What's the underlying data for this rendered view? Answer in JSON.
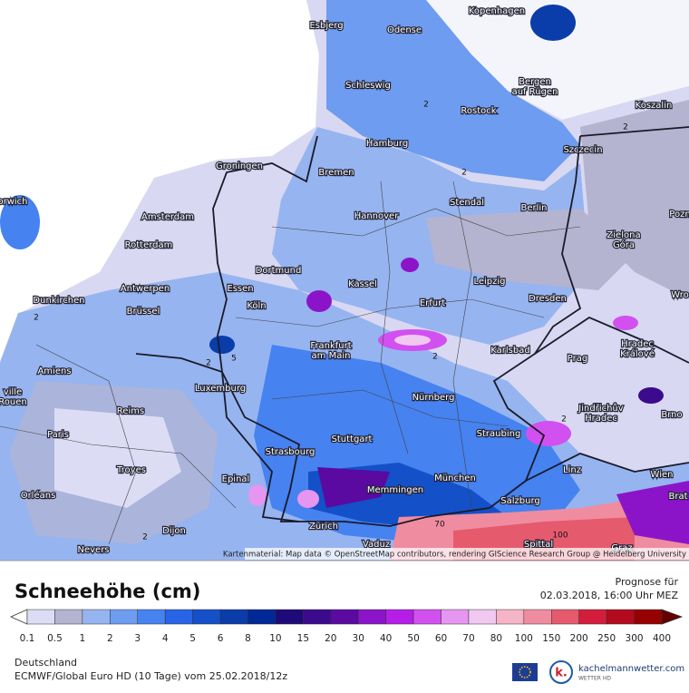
{
  "map": {
    "cities": [
      {
        "lines": [
          "Esbjerg"
        ]
      },
      {
        "lines": [
          "Odense"
        ]
      },
      {
        "lines": [
          "Kopenhagen"
        ]
      },
      {
        "lines": [
          "Schleswig"
        ]
      },
      {
        "lines": [
          "Bergen",
          "auf Rügen"
        ]
      },
      {
        "lines": [
          "Rostock"
        ]
      },
      {
        "lines": [
          "Koszalin"
        ]
      },
      {
        "lines": [
          "Hamburg"
        ]
      },
      {
        "lines": [
          "Szczecin"
        ]
      },
      {
        "lines": [
          "Groningen"
        ]
      },
      {
        "lines": [
          "Bremen"
        ]
      },
      {
        "lines": [
          "Stendal"
        ]
      },
      {
        "lines": [
          "Amsterdam"
        ]
      },
      {
        "lines": [
          "Hannover"
        ]
      },
      {
        "lines": [
          "Berlin"
        ]
      },
      {
        "lines": [
          "Pozn"
        ]
      },
      {
        "lines": [
          "orwich"
        ]
      },
      {
        "lines": [
          "Rotterdam"
        ]
      },
      {
        "lines": [
          "Zielona",
          "Góra"
        ]
      },
      {
        "lines": [
          "Dortmund"
        ]
      },
      {
        "lines": [
          "Kassel"
        ]
      },
      {
        "lines": [
          "Leipzig"
        ]
      },
      {
        "lines": [
          "Antwerpen"
        ]
      },
      {
        "lines": [
          "Dunkirchen"
        ]
      },
      {
        "lines": [
          "Essen"
        ]
      },
      {
        "lines": [
          "Köln"
        ]
      },
      {
        "lines": [
          "Erfurt"
        ]
      },
      {
        "lines": [
          "Dresden"
        ]
      },
      {
        "lines": [
          "Wro"
        ]
      },
      {
        "lines": [
          "Brüssel"
        ]
      },
      {
        "lines": [
          "Frankfurt",
          "am Main"
        ]
      },
      {
        "lines": [
          "Karlsbad"
        ]
      },
      {
        "lines": [
          "Hradec",
          "Králové"
        ]
      },
      {
        "lines": [
          "Amiens"
        ]
      },
      {
        "lines": [
          "Prag"
        ]
      },
      {
        "lines": [
          "Luxemburg"
        ]
      },
      {
        "lines": [
          "Nürnberg"
        ]
      },
      {
        "lines": [
          "Jindřichův",
          "Hradec"
        ]
      },
      {
        "lines": [
          "Brno"
        ]
      },
      {
        "lines": [
          "Reims"
        ]
      },
      {
        "lines": [
          "Paris"
        ]
      },
      {
        "lines": [
          "Stuttgart"
        ]
      },
      {
        "lines": [
          "Straubing"
        ]
      },
      {
        "lines": [
          "Strasbourg"
        ]
      },
      {
        "lines": [
          "Troyes"
        ]
      },
      {
        "lines": [
          "Linz"
        ]
      },
      {
        "lines": [
          "Wien"
        ]
      },
      {
        "lines": [
          "Epinal"
        ]
      },
      {
        "lines": [
          "München"
        ]
      },
      {
        "lines": [
          "Memmingen"
        ]
      },
      {
        "lines": [
          "Orléans"
        ]
      },
      {
        "lines": [
          "Salzburg"
        ]
      },
      {
        "lines": [
          "Zürich"
        ]
      },
      {
        "lines": [
          "Vaduz"
        ]
      },
      {
        "lines": [
          "Dijon"
        ]
      },
      {
        "lines": [
          "Spittal"
        ]
      },
      {
        "lines": [
          "Nevers"
        ]
      },
      {
        "lines": [
          "Graz"
        ]
      },
      {
        "lines": [
          "Brat"
        ]
      },
      {
        "lines": [
          "ville",
          "Rouen"
        ]
      }
    ],
    "contour_labels": [
      "2",
      "2",
      "2",
      "2",
      "2",
      "5",
      "2",
      "2",
      "70",
      "100",
      "2"
    ],
    "attribution": "Kartenmaterial: Map data © OpenStreetMap contributors, rendering GIScience Research Group @ Heidelberg University"
  },
  "legend": {
    "title": "Schneehöhe (cm)",
    "levels": [
      0.1,
      0.5,
      1,
      2,
      3,
      4,
      5,
      6,
      8,
      10,
      15,
      20,
      30,
      40,
      50,
      60,
      70,
      80,
      100,
      150,
      200,
      250,
      300,
      400
    ],
    "colors": [
      "#dcdcf5",
      "#b4b4d0",
      "#96b4f0",
      "#6e9cf0",
      "#4682f0",
      "#2864e6",
      "#1450c8",
      "#0a3caa",
      "#002896",
      "#1e0a78",
      "#3c0a8c",
      "#5a0aa0",
      "#8c14c8",
      "#b41ee6",
      "#d250f0",
      "#e696f0",
      "#f0c8f0",
      "#f5b4c8",
      "#f08ca0",
      "#e65a6e",
      "#d21e3c",
      "#b40a1e",
      "#960000"
    ],
    "under_color": "#ffffff",
    "over_color": "#640000"
  },
  "forecast": {
    "label": "Prognose für",
    "time": "02.03.2018, 16:00 Uhr MEZ"
  },
  "footer": {
    "region": "Deutschland",
    "model": "ECMWF/Global Euro HD (10 Tage) vom 25.02.2018/12z",
    "brand": "kachelmannwetter.com",
    "brand_sub": "WETTER HD"
  }
}
